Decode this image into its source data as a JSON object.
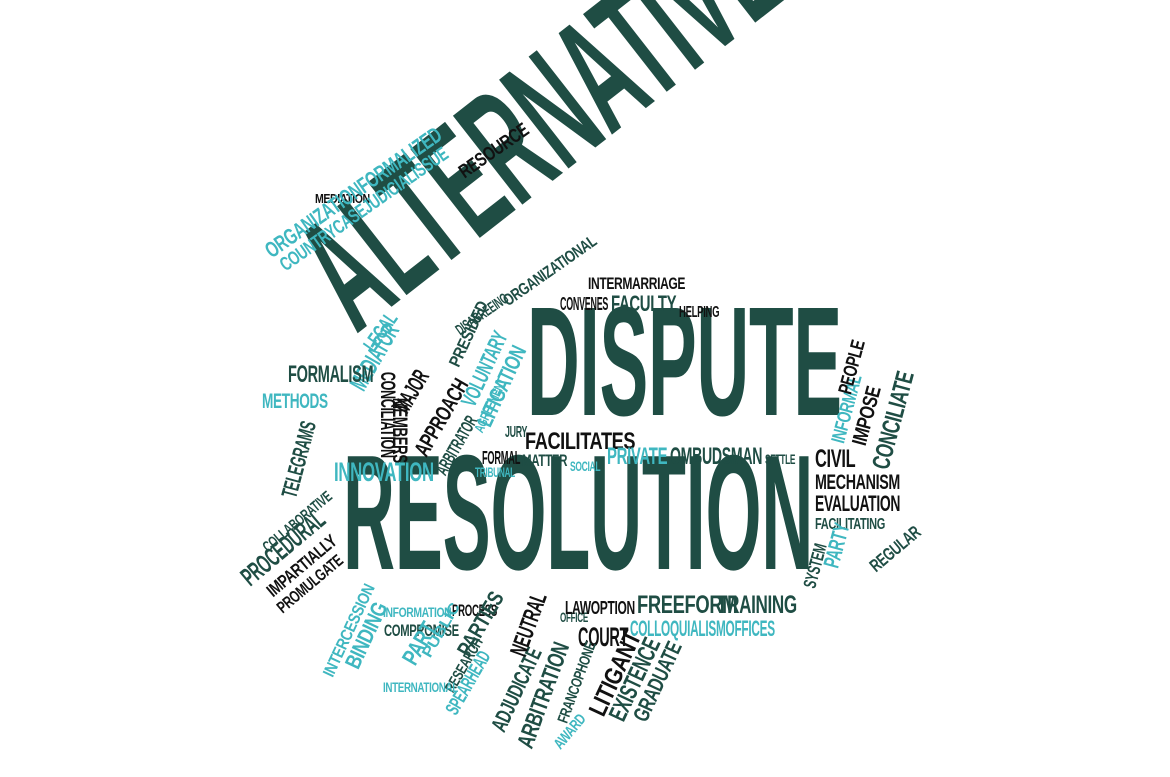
{
  "colors": {
    "dark": "#1f4d44",
    "teal": "#3fb7c0",
    "black": "#111111",
    "background": "#ffffff"
  },
  "words": {
    "alternative": "ALTERNATIVE",
    "dispute": "DISPUTE",
    "resolution": "RESOLUTION",
    "mediation": "MEDIATION",
    "organization_formalized": "ORGANIZATIONFORMALIZED",
    "country_case_judicial_issue": "COUNTRYCASEJUDICIALISSUE",
    "resource": "RESOURCE",
    "intermarriage": "INTERMARRIAGE",
    "organizational": "ORGANIZATIONAL",
    "disagreeing": "DISAGREEING",
    "convenes": "CONVENES",
    "faculty": "FACULTY",
    "helping": "HELPING",
    "legal": "LEGAL",
    "presided": "PRESIDED",
    "voluntary": "VOLUNTARY",
    "litigation": "LITIGATION",
    "agreement": "AGREEMENT",
    "approach": "APPROACH",
    "arbitrator": "ARBITRATOR",
    "major": "MAJOR",
    "conciliation": "CONCILIATION",
    "members": "MEMBERS",
    "mediator": "MEDIATOR",
    "formalism": "FORMALISM",
    "methods": "METHODS",
    "telegrams": "TELEGRAMS",
    "innovation": "INNOVATION",
    "jury": "JURY",
    "formal": "FORMAL",
    "tribunal": "TRIBUNAL",
    "matter": "MATTER",
    "social": "SOCIAL",
    "facilitates": "FACILITATES",
    "private": "PRIVATE",
    "ombudsman": "OMBUDSMAN",
    "settle": "SETTLE",
    "informal": "INFORMAL",
    "people": "PEOPLE",
    "impose": "IMPOSE",
    "conciliate": "CONCILIATE",
    "civil": "CIVIL",
    "mechanism": "MECHANISM",
    "evaluation": "EVALUATION",
    "facilitating": "FACILITATING",
    "system": "SYSTEM",
    "party": "PARTY",
    "regular": "REGULAR",
    "collaborative": "COLLABORATIVE",
    "procedural": "PROCEDURAL",
    "impartially": "IMPARTIALLY",
    "promulgate": "PROMULGATE",
    "intercession": "INTERCESSION",
    "binding": "BINDING",
    "information": "INFORMATION",
    "process": "PROCESS",
    "compromise": "COMPROMISE",
    "public": "PUBLIC",
    "part": "PART",
    "research": "RESEARCH",
    "spearhead": "SPEARHEAD",
    "international": "INTERNATIONAL",
    "parties": "PARTIES",
    "adjudicate": "ADJUDICATE",
    "neutral": "NEUTRAL",
    "arbitration": "ARBITRATION",
    "office": "OFFICE",
    "law_option": "LAWOPTION",
    "court": "COURT",
    "francophone": "FRANCOPHONE",
    "award": "AWARD",
    "freeform": "FREEFORM",
    "training": "TRAINING",
    "colloquialism_offices": "COLLOQUIALISMOFFICES",
    "litigant": "LITIGANT",
    "existence": "EXISTENCE",
    "graduate": "GRADUATE"
  }
}
